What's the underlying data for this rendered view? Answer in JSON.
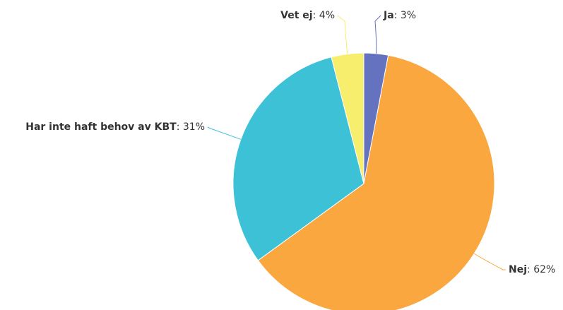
{
  "chart_data": {
    "type": "pie",
    "categories": [
      "Ja",
      "Nej",
      "Har inte haft behov av KBT",
      "Vet ej"
    ],
    "values": [
      3,
      62,
      31,
      4
    ],
    "value_labels": [
      "3%",
      "62%",
      "31%",
      "4%"
    ],
    "colors": [
      "#6572bf",
      "#f9a73e",
      "#3cc1d6",
      "#f7ee6d"
    ]
  }
}
